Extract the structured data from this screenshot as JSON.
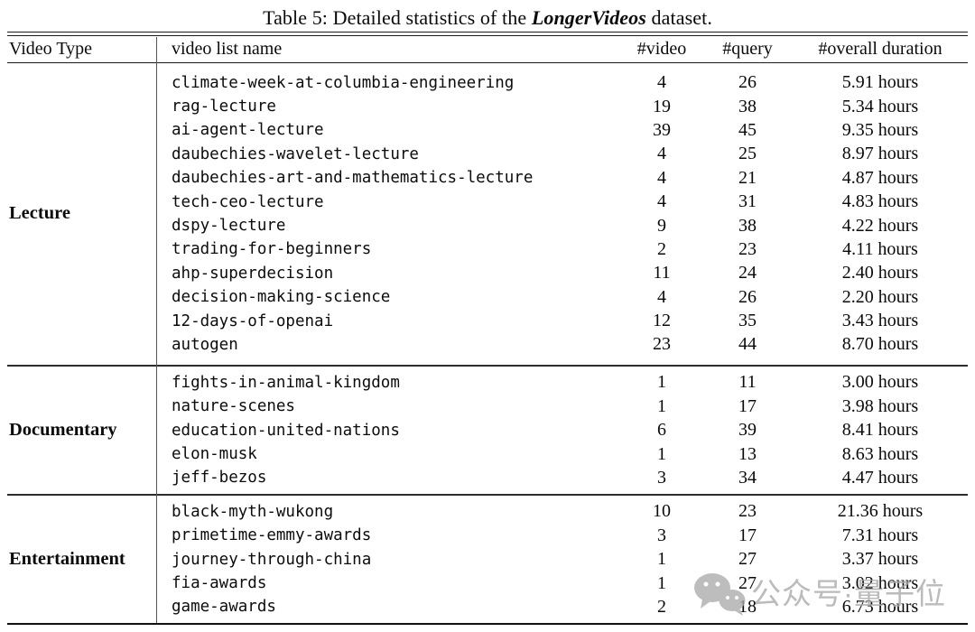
{
  "title": {
    "prefix": "Table 5: Detailed statistics of the ",
    "emph": "LongerVideos",
    "suffix": " dataset."
  },
  "table": {
    "headers": {
      "video_type": "Video Type",
      "list_name": "video list name",
      "video_count": "#video",
      "query_count": "#query",
      "duration": "#overall duration"
    },
    "sections": [
      {
        "type": "Lecture",
        "rows": [
          {
            "name": "climate-week-at-columbia-engineering",
            "videos": 4,
            "queries": 26,
            "duration": "5.91 hours"
          },
          {
            "name": "rag-lecture",
            "videos": 19,
            "queries": 38,
            "duration": "5.34 hours"
          },
          {
            "name": "ai-agent-lecture",
            "videos": 39,
            "queries": 45,
            "duration": "9.35 hours"
          },
          {
            "name": "daubechies-wavelet-lecture",
            "videos": 4,
            "queries": 25,
            "duration": "8.97 hours"
          },
          {
            "name": "daubechies-art-and-mathematics-lecture",
            "videos": 4,
            "queries": 21,
            "duration": "4.87 hours"
          },
          {
            "name": "tech-ceo-lecture",
            "videos": 4,
            "queries": 31,
            "duration": "4.83 hours"
          },
          {
            "name": "dspy-lecture",
            "videos": 9,
            "queries": 38,
            "duration": "4.22 hours"
          },
          {
            "name": "trading-for-beginners",
            "videos": 2,
            "queries": 23,
            "duration": "4.11 hours"
          },
          {
            "name": "ahp-superdecision",
            "videos": 11,
            "queries": 24,
            "duration": "2.40 hours"
          },
          {
            "name": "decision-making-science",
            "videos": 4,
            "queries": 26,
            "duration": "2.20 hours"
          },
          {
            "name": "12-days-of-openai",
            "videos": 12,
            "queries": 35,
            "duration": "3.43 hours"
          },
          {
            "name": "autogen",
            "videos": 23,
            "queries": 44,
            "duration": "8.70 hours"
          }
        ]
      },
      {
        "type": "Documentary",
        "rows": [
          {
            "name": "fights-in-animal-kingdom",
            "videos": 1,
            "queries": 11,
            "duration": "3.00 hours"
          },
          {
            "name": "nature-scenes",
            "videos": 1,
            "queries": 17,
            "duration": "3.98 hours"
          },
          {
            "name": "education-united-nations",
            "videos": 6,
            "queries": 39,
            "duration": "8.41 hours"
          },
          {
            "name": "elon-musk",
            "videos": 1,
            "queries": 13,
            "duration": "8.63 hours"
          },
          {
            "name": "jeff-bezos",
            "videos": 3,
            "queries": 34,
            "duration": "4.47 hours"
          }
        ]
      },
      {
        "type": "Entertainment",
        "rows": [
          {
            "name": "black-myth-wukong",
            "videos": 10,
            "queries": 23,
            "duration": "21.36 hours"
          },
          {
            "name": "primetime-emmy-awards",
            "videos": 3,
            "queries": 17,
            "duration": "7.31 hours"
          },
          {
            "name": "journey-through-china",
            "videos": 1,
            "queries": 27,
            "duration": "3.37 hours"
          },
          {
            "name": "fia-awards",
            "videos": 1,
            "queries": 27,
            "duration": "3.02 hours"
          },
          {
            "name": "game-awards",
            "videos": 2,
            "queries": 18,
            "duration": "6.73 hours"
          }
        ]
      }
    ]
  },
  "watermark": {
    "icon": "wechat-icon",
    "text": "公众号·量子位",
    "color": "#a9a9a9"
  }
}
